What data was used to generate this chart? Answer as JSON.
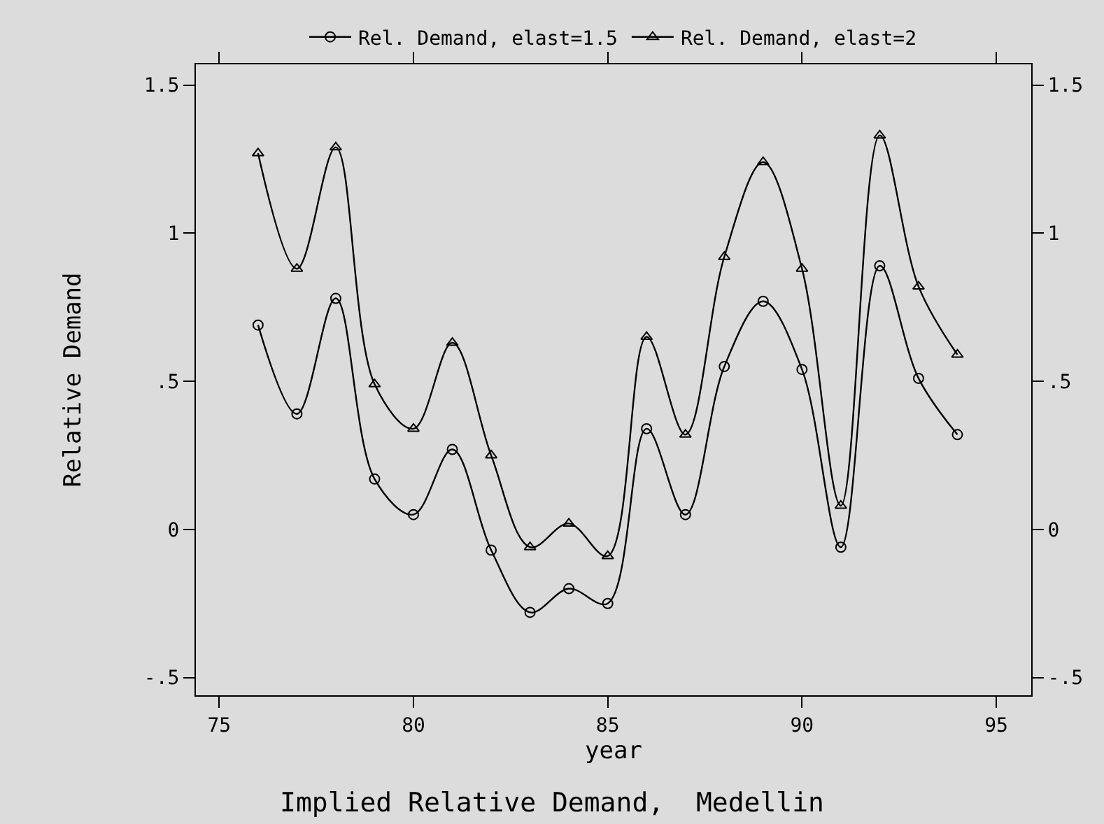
{
  "chart_data": {
    "type": "line",
    "title": "Implied Relative Demand,  Medellin",
    "xlabel": "year",
    "ylabel": "Relative Demand",
    "x": [
      76,
      77,
      78,
      79,
      80,
      81,
      82,
      83,
      84,
      85,
      86,
      87,
      88,
      89,
      90,
      91,
      92,
      93,
      94
    ],
    "series": [
      {
        "name": "Rel. Demand, elast=1.5",
        "color": "#000000",
        "marker": "circle",
        "values": [
          0.69,
          0.39,
          0.78,
          0.17,
          0.05,
          0.27,
          -0.07,
          -0.28,
          -0.2,
          -0.25,
          0.34,
          0.05,
          0.55,
          0.77,
          0.54,
          -0.06,
          0.89,
          0.51,
          0.32
        ]
      },
      {
        "name": "Rel. Demand, elast=2",
        "color": "#000000",
        "marker": "triangle",
        "values": [
          1.27,
          0.88,
          1.29,
          0.49,
          0.34,
          0.63,
          0.25,
          -0.06,
          0.02,
          -0.09,
          0.65,
          0.32,
          0.92,
          1.24,
          0.88,
          0.08,
          1.33,
          0.82,
          0.59
        ]
      }
    ],
    "xlim": [
      74.4,
      95.9
    ],
    "xticks": [
      75,
      80,
      85,
      90,
      95
    ],
    "ylim": [
      -0.56,
      1.57
    ],
    "yticks": [
      {
        "value": -0.5,
        "label": "-.5"
      },
      0,
      {
        "value": 0.5,
        "label": ".5"
      },
      1,
      1.5
    ],
    "y2lim": [
      -0.56,
      1.57
    ],
    "y2ticks": [
      {
        "value": -0.5,
        "label": "-.5"
      },
      0,
      {
        "value": 0.5,
        "label": ".5"
      },
      1,
      1.5
    ],
    "grid": false,
    "legend": "top",
    "line_style": "solid"
  }
}
